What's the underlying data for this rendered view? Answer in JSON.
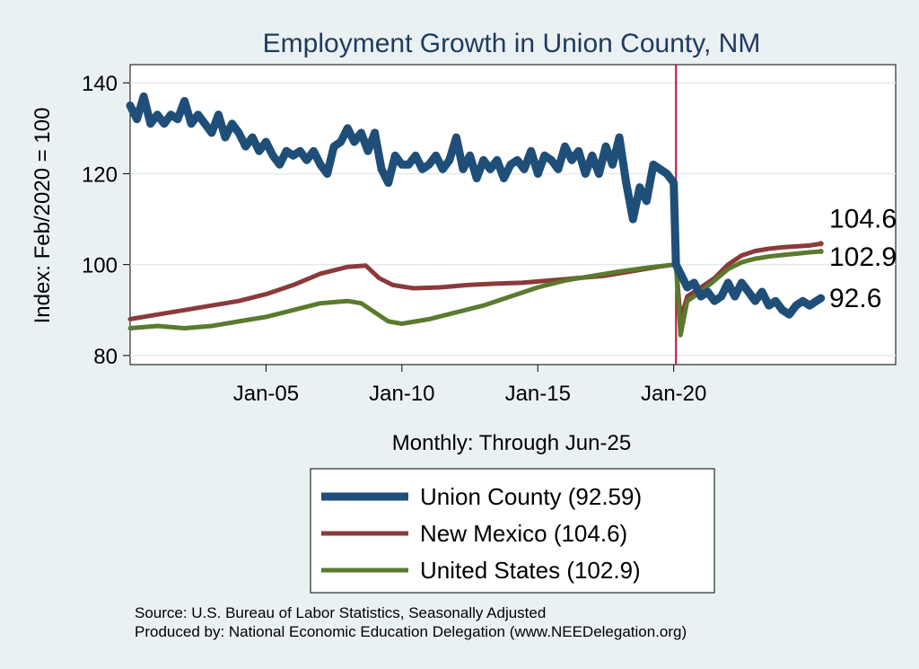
{
  "chart_data": {
    "type": "line",
    "title": "Employment Growth in Union  County, NM",
    "xlabel": "Monthly: Through Jun-25",
    "ylabel": "Index: Feb/2020 = 100",
    "ylim": [
      78,
      144
    ],
    "xlim": [
      "2000-01",
      "2028-03"
    ],
    "yticks": [
      80,
      100,
      120,
      140
    ],
    "xticks": [
      {
        "label": "Jan-05",
        "date": "2005-01"
      },
      {
        "label": "Jan-10",
        "date": "2010-01"
      },
      {
        "label": "Jan-15",
        "date": "2015-01"
      },
      {
        "label": "Jan-20",
        "date": "2020-01"
      }
    ],
    "reference_line": {
      "date": "2020-02",
      "color": "#c0143c"
    },
    "grid": true,
    "legend_position": "bottom",
    "series": [
      {
        "name": "Union  County (92.59)",
        "color": "#1f4e79",
        "end_label": "92.6",
        "points": [
          [
            "2000-01",
            135
          ],
          [
            "2000-04",
            132
          ],
          [
            "2000-07",
            137
          ],
          [
            "2000-10",
            131
          ],
          [
            "2001-01",
            133
          ],
          [
            "2001-04",
            131
          ],
          [
            "2001-07",
            133
          ],
          [
            "2001-10",
            132
          ],
          [
            "2002-01",
            136
          ],
          [
            "2002-04",
            131
          ],
          [
            "2002-07",
            133
          ],
          [
            "2002-10",
            131
          ],
          [
            "2003-01",
            129
          ],
          [
            "2003-04",
            133
          ],
          [
            "2003-07",
            128
          ],
          [
            "2003-10",
            131
          ],
          [
            "2004-01",
            129
          ],
          [
            "2004-04",
            126
          ],
          [
            "2004-07",
            128
          ],
          [
            "2004-10",
            125
          ],
          [
            "2005-01",
            127
          ],
          [
            "2005-04",
            124
          ],
          [
            "2005-07",
            122
          ],
          [
            "2005-10",
            125
          ],
          [
            "2006-01",
            124
          ],
          [
            "2006-04",
            125
          ],
          [
            "2006-07",
            123
          ],
          [
            "2006-10",
            125
          ],
          [
            "2007-01",
            122
          ],
          [
            "2007-04",
            120
          ],
          [
            "2007-07",
            126
          ],
          [
            "2007-10",
            127
          ],
          [
            "2008-01",
            130
          ],
          [
            "2008-04",
            127
          ],
          [
            "2008-07",
            129
          ],
          [
            "2008-10",
            125
          ],
          [
            "2009-01",
            129
          ],
          [
            "2009-04",
            121
          ],
          [
            "2009-07",
            118
          ],
          [
            "2009-10",
            124
          ],
          [
            "2010-01",
            122
          ],
          [
            "2010-04",
            122
          ],
          [
            "2010-07",
            124
          ],
          [
            "2010-10",
            121
          ],
          [
            "2011-01",
            122
          ],
          [
            "2011-04",
            124
          ],
          [
            "2011-07",
            121
          ],
          [
            "2011-10",
            123
          ],
          [
            "2012-01",
            128
          ],
          [
            "2012-04",
            121
          ],
          [
            "2012-07",
            124
          ],
          [
            "2012-10",
            119
          ],
          [
            "2013-01",
            123
          ],
          [
            "2013-04",
            121
          ],
          [
            "2013-07",
            123
          ],
          [
            "2013-10",
            119
          ],
          [
            "2014-01",
            122
          ],
          [
            "2014-04",
            123
          ],
          [
            "2014-07",
            121
          ],
          [
            "2014-10",
            125
          ],
          [
            "2015-01",
            120
          ],
          [
            "2015-04",
            124
          ],
          [
            "2015-07",
            123
          ],
          [
            "2015-10",
            121
          ],
          [
            "2016-01",
            126
          ],
          [
            "2016-04",
            123
          ],
          [
            "2016-07",
            125
          ],
          [
            "2016-10",
            120
          ],
          [
            "2017-01",
            124
          ],
          [
            "2017-04",
            120
          ],
          [
            "2017-07",
            126
          ],
          [
            "2017-10",
            122
          ],
          [
            "2018-01",
            128
          ],
          [
            "2018-04",
            118
          ],
          [
            "2018-07",
            110
          ],
          [
            "2018-10",
            117
          ],
          [
            "2019-01",
            114
          ],
          [
            "2019-04",
            122
          ],
          [
            "2019-07",
            121
          ],
          [
            "2019-10",
            120
          ],
          [
            "2020-01",
            118
          ],
          [
            "2020-02",
            100
          ],
          [
            "2020-04",
            98
          ],
          [
            "2020-07",
            95
          ],
          [
            "2020-10",
            96
          ],
          [
            "2021-01",
            93
          ],
          [
            "2021-04",
            94
          ],
          [
            "2021-07",
            92
          ],
          [
            "2021-10",
            93
          ],
          [
            "2022-01",
            96
          ],
          [
            "2022-04",
            93
          ],
          [
            "2022-07",
            96
          ],
          [
            "2022-10",
            94
          ],
          [
            "2023-01",
            92
          ],
          [
            "2023-04",
            94
          ],
          [
            "2023-07",
            91
          ],
          [
            "2023-10",
            92
          ],
          [
            "2024-01",
            90
          ],
          [
            "2024-04",
            89
          ],
          [
            "2024-07",
            91
          ],
          [
            "2024-10",
            92
          ],
          [
            "2025-01",
            91
          ],
          [
            "2025-04",
            92
          ],
          [
            "2025-06",
            92.6
          ]
        ]
      },
      {
        "name": "New Mexico (104.6)",
        "color": "#8b3a3a",
        "end_label": "104.6",
        "points": [
          [
            "2000-01",
            88
          ],
          [
            "2001-01",
            89
          ],
          [
            "2002-01",
            90
          ],
          [
            "2003-01",
            91
          ],
          [
            "2004-01",
            92
          ],
          [
            "2005-01",
            93.5
          ],
          [
            "2006-01",
            95.5
          ],
          [
            "2007-01",
            98
          ],
          [
            "2008-01",
            99.5
          ],
          [
            "2008-09",
            99.8
          ],
          [
            "2009-03",
            97
          ],
          [
            "2009-09",
            95.5
          ],
          [
            "2010-06",
            94.8
          ],
          [
            "2011-06",
            95
          ],
          [
            "2012-06",
            95.5
          ],
          [
            "2013-06",
            95.8
          ],
          [
            "2014-06",
            96
          ],
          [
            "2015-06",
            96.5
          ],
          [
            "2016-06",
            97
          ],
          [
            "2017-06",
            97.5
          ],
          [
            "2018-06",
            98.5
          ],
          [
            "2019-06",
            99.5
          ],
          [
            "2020-01",
            100
          ],
          [
            "2020-02",
            100
          ],
          [
            "2020-04",
            88
          ],
          [
            "2020-07",
            93
          ],
          [
            "2021-01",
            95
          ],
          [
            "2021-07",
            97
          ],
          [
            "2022-01",
            100
          ],
          [
            "2022-07",
            102
          ],
          [
            "2023-01",
            103
          ],
          [
            "2023-07",
            103.5
          ],
          [
            "2024-01",
            103.8
          ],
          [
            "2024-07",
            104
          ],
          [
            "2025-01",
            104.2
          ],
          [
            "2025-06",
            104.6
          ]
        ]
      },
      {
        "name": "United States (102.9)",
        "color": "#5a7a2e",
        "end_label": "102.9",
        "points": [
          [
            "2000-01",
            86
          ],
          [
            "2001-01",
            86.5
          ],
          [
            "2002-01",
            86
          ],
          [
            "2003-01",
            86.5
          ],
          [
            "2004-01",
            87.5
          ],
          [
            "2005-01",
            88.5
          ],
          [
            "2006-01",
            90
          ],
          [
            "2007-01",
            91.5
          ],
          [
            "2008-01",
            92
          ],
          [
            "2008-07",
            91.5
          ],
          [
            "2009-01",
            89.5
          ],
          [
            "2009-07",
            87.5
          ],
          [
            "2010-01",
            87
          ],
          [
            "2011-01",
            88
          ],
          [
            "2012-01",
            89.5
          ],
          [
            "2013-01",
            91
          ],
          [
            "2014-01",
            93
          ],
          [
            "2015-01",
            95
          ],
          [
            "2016-01",
            96.5
          ],
          [
            "2017-01",
            97.5
          ],
          [
            "2018-01",
            98.5
          ],
          [
            "2019-01",
            99.3
          ],
          [
            "2020-01",
            100
          ],
          [
            "2020-02",
            100
          ],
          [
            "2020-04",
            84.5
          ],
          [
            "2020-07",
            92
          ],
          [
            "2021-01",
            94
          ],
          [
            "2021-07",
            96.5
          ],
          [
            "2022-01",
            99
          ],
          [
            "2022-07",
            100.5
          ],
          [
            "2023-01",
            101.3
          ],
          [
            "2023-07",
            101.8
          ],
          [
            "2024-01",
            102.1
          ],
          [
            "2024-07",
            102.4
          ],
          [
            "2025-01",
            102.7
          ],
          [
            "2025-06",
            102.9
          ]
        ]
      }
    ],
    "source_lines": [
      "Source: U.S. Bureau of Labor Statistics, Seasonally Adjusted",
      "Produced by: National Economic Education Delegation (www.NEEDelegation.org)"
    ]
  }
}
